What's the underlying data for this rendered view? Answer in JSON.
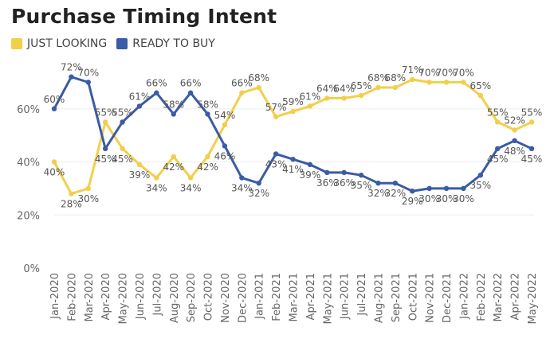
{
  "header": {
    "title": "Purchase Timing Intent"
  },
  "chart_data": {
    "type": "line",
    "title": "Purchase Timing Intent",
    "xlabel": "",
    "ylabel": "",
    "ylim": [
      0,
      80
    ],
    "yticks": [
      "0%",
      "20%",
      "40%",
      "60%"
    ],
    "y_tick_values": [
      0,
      20,
      40,
      60
    ],
    "grid": true,
    "legend": "top-left",
    "categories": [
      "Jan-2020",
      "Feb-2020",
      "Mar-2020",
      "Apr-2020",
      "May-2020",
      "Jun-2020",
      "Jul-2020",
      "Aug-2020",
      "Sep-2020",
      "Oct-2020",
      "Nov-2020",
      "Dec-2020",
      "Jan-2021",
      "Feb-2021",
      "Mar-2021",
      "Apr-2021",
      "May-2021",
      "Jun-2021",
      "Jul-2021",
      "Aug-2021",
      "Sep-2021",
      "Oct-2021",
      "Nov-2021",
      "Dec-2021",
      "Jan-2022",
      "Feb-2022",
      "Mar-2022",
      "Apr-2022",
      "May-2022"
    ],
    "series": [
      {
        "name": "JUST LOOKING",
        "color": "#f2cf4a",
        "values": [
          40,
          28,
          30,
          55,
          45,
          39,
          34,
          42,
          34,
          42,
          54,
          66,
          68,
          57,
          59,
          61,
          64,
          64,
          65,
          68,
          68,
          71,
          70,
          70,
          70,
          65,
          55,
          52,
          55
        ],
        "labels": [
          "40%",
          "28%",
          "30%",
          "55%",
          "45%",
          "39%",
          "34%",
          "42%",
          "34%",
          "42%",
          "54%",
          "66%",
          "68%",
          "57%",
          "59%",
          "61%",
          "64%",
          "64%",
          "65%",
          "68%",
          "68%",
          "71%",
          "70%",
          "70%",
          "70%",
          "65%",
          "55%",
          "52%",
          "55%"
        ]
      },
      {
        "name": "READY TO BUY",
        "color": "#3a5ba6",
        "values": [
          60,
          72,
          70,
          45,
          55,
          61,
          66,
          58,
          66,
          58,
          46,
          34,
          32,
          43,
          41,
          39,
          36,
          36,
          35,
          32,
          32,
          29,
          30,
          30,
          30,
          35,
          45,
          48,
          45
        ],
        "labels": [
          "60%",
          "72%",
          "70%",
          "45%",
          "55%",
          "61%",
          "66%",
          "58%",
          "66%",
          "58%",
          "46%",
          "34%",
          "32%",
          "43%",
          "41%",
          "39%",
          "36%",
          "36%",
          "35%",
          "32%",
          "32%",
          "29%",
          "30%",
          "30%",
          "30%",
          "35%",
          "45%",
          "48%",
          "45%"
        ]
      }
    ]
  }
}
